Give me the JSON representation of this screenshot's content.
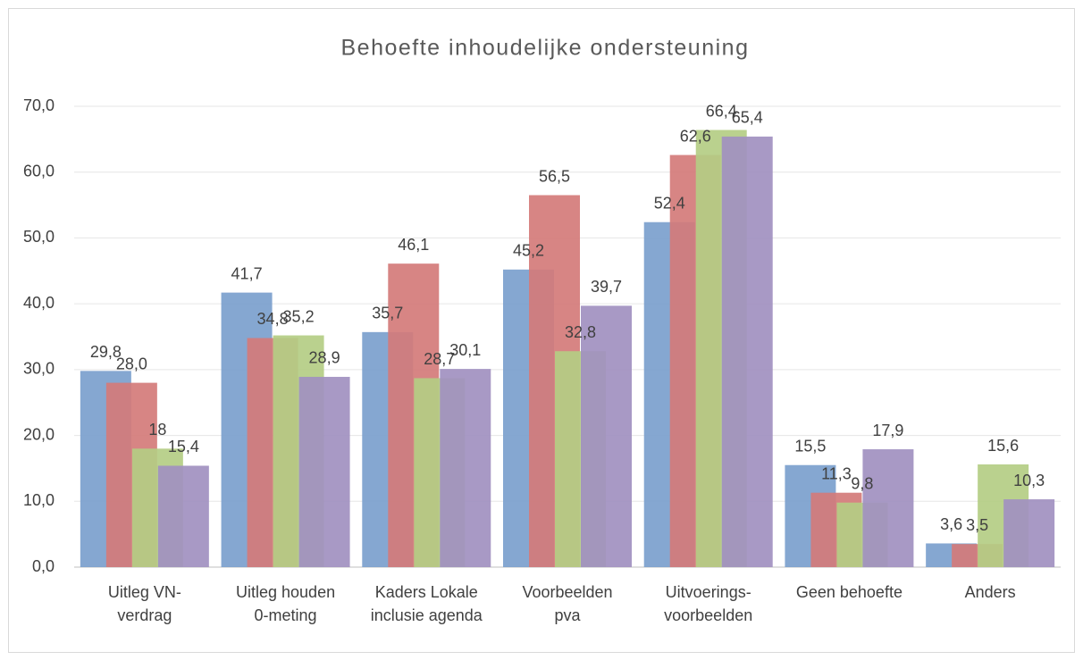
{
  "chart_data": {
    "type": "bar",
    "title": "Behoefte inhoudelijke ondersteuning",
    "categories": [
      "Uitleg VN-\nverdrag",
      "Uitleg houden\n0-meting",
      "Kaders Lokale\ninclusie agenda",
      "Voorbeelden\npva",
      "Uitvoerings-\nvoorbeelden",
      "Geen behoefte",
      "Anders"
    ],
    "series": [
      {
        "color": "#7ba0cd",
        "values": [
          29.8,
          41.7,
          35.7,
          45.2,
          52.4,
          15.5,
          3.6
        ],
        "value_labels": [
          "29,8",
          "41,7",
          "35,7",
          "45,2",
          "52,4",
          "15,5",
          "3,6"
        ]
      },
      {
        "color": "#d47b79",
        "values": [
          28.0,
          34.8,
          46.1,
          56.5,
          62.6,
          11.3,
          3.5
        ],
        "value_labels": [
          "28,0",
          "34,8",
          "46,1",
          "56,5",
          "62,6",
          "11,3",
          "3,5"
        ]
      },
      {
        "color": "#b4cd84",
        "values": [
          18,
          35.2,
          28.7,
          32.8,
          66.4,
          9.8,
          15.6
        ],
        "value_labels": [
          "18",
          "35,2",
          "28,7",
          "32,8",
          "66,4",
          "9,8",
          "15,6"
        ]
      },
      {
        "color": "#a190c0",
        "values": [
          15.4,
          28.9,
          30.1,
          39.7,
          65.4,
          17.9,
          10.3
        ],
        "value_labels": [
          "15,4",
          "28,9",
          "30,1",
          "39,7",
          "65,4",
          "17,9",
          "10,3"
        ]
      }
    ],
    "ylim": [
      0,
      70
    ],
    "yticks": [
      {
        "value": 0,
        "label": "0,0"
      },
      {
        "value": 10,
        "label": "10,0"
      },
      {
        "value": 20,
        "label": "20,0"
      },
      {
        "value": 30,
        "label": "30,0"
      },
      {
        "value": 40,
        "label": "40,0"
      },
      {
        "value": 50,
        "label": "50,0"
      },
      {
        "value": 60,
        "label": "60,0"
      },
      {
        "value": 70,
        "label": "70,0"
      }
    ],
    "grid": true
  }
}
